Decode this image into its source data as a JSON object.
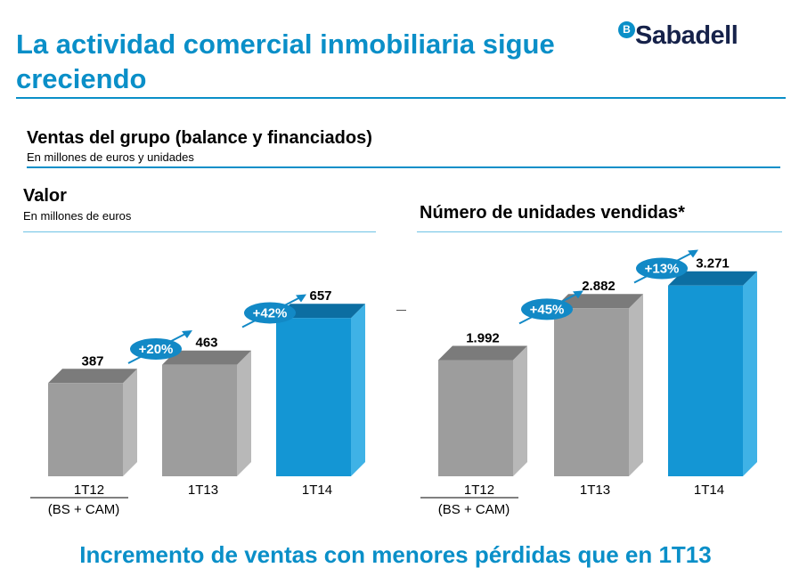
{
  "slide": {
    "title": "La actividad comercial inmobiliaria sigue creciendo",
    "logo": "Sabadell",
    "section_title": "Ventas del grupo (balance y financiados)",
    "section_subtitle": "En millones de euros y unidades",
    "footer": "Incremento de ventas con menores pérdidas que en 1T13"
  },
  "colors": {
    "accent": "#0a8fc8",
    "bar_gray_front": "#9d9d9d",
    "bar_gray_top": "#7b7b7b",
    "bar_gray_side": "#b8b8b8",
    "bar_blue_front": "#1496d4",
    "bar_blue_top": "#0c6ea2",
    "bar_blue_side": "#3fb2e6",
    "badge": "#1289c6"
  },
  "chart_data": [
    {
      "type": "bar",
      "title": "Valor",
      "subtitle": "En millones de euros",
      "categories": [
        "1T12",
        "1T13",
        "1T14"
      ],
      "category_notes": [
        "(BS + CAM)",
        "",
        ""
      ],
      "values": [
        387,
        463,
        657
      ],
      "value_labels": [
        "387",
        "463",
        "657"
      ],
      "highlight": [
        false,
        false,
        true
      ],
      "growth_badges": [
        "+20%",
        "+42%"
      ],
      "ylim": [
        0,
        850
      ]
    },
    {
      "type": "bar",
      "title": "Número de unidades vendidas*",
      "subtitle": "",
      "categories": [
        "1T12",
        "1T13",
        "1T14"
      ],
      "category_notes": [
        "(BS + CAM)",
        "",
        ""
      ],
      "values": [
        1992,
        2882,
        3271
      ],
      "value_labels": [
        "1.992",
        "2.882",
        "3.271"
      ],
      "highlight": [
        false,
        false,
        true
      ],
      "growth_badges": [
        "+45%",
        "+13%"
      ],
      "ylim": [
        0,
        4000
      ]
    }
  ]
}
